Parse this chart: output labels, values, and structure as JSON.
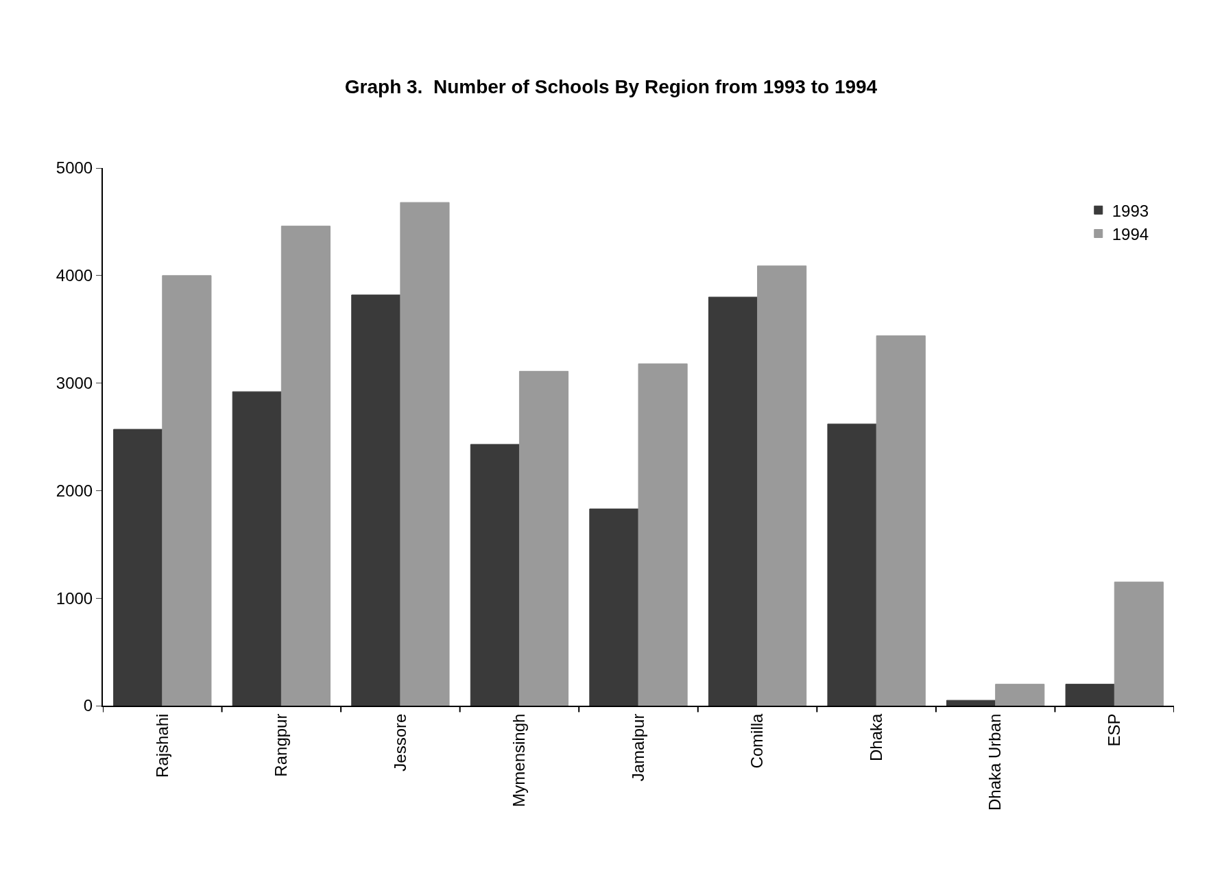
{
  "chart_data": {
    "type": "bar",
    "title": "Graph 3.  Number of Schools By Region from 1993 to 1994",
    "categories": [
      "Rajshahi",
      "Rangpur",
      "Jessore",
      "Mymensingh",
      "Jamalpur",
      "Comilla",
      "Dhaka",
      "Dhaka Urban",
      "ESP"
    ],
    "series": [
      {
        "name": "1993",
        "color": "#3a3a3a",
        "values": [
          2570,
          2920,
          3820,
          2430,
          1830,
          3800,
          2620,
          50,
          200
        ]
      },
      {
        "name": "1994",
        "color": "#9a9a9a",
        "values": [
          4000,
          4460,
          4680,
          3110,
          3180,
          4090,
          3440,
          200,
          1150
        ]
      }
    ],
    "ylim": [
      0,
      5000
    ],
    "yticks": [
      0,
      1000,
      2000,
      3000,
      4000,
      5000
    ],
    "grid": false,
    "legend": "top right"
  }
}
